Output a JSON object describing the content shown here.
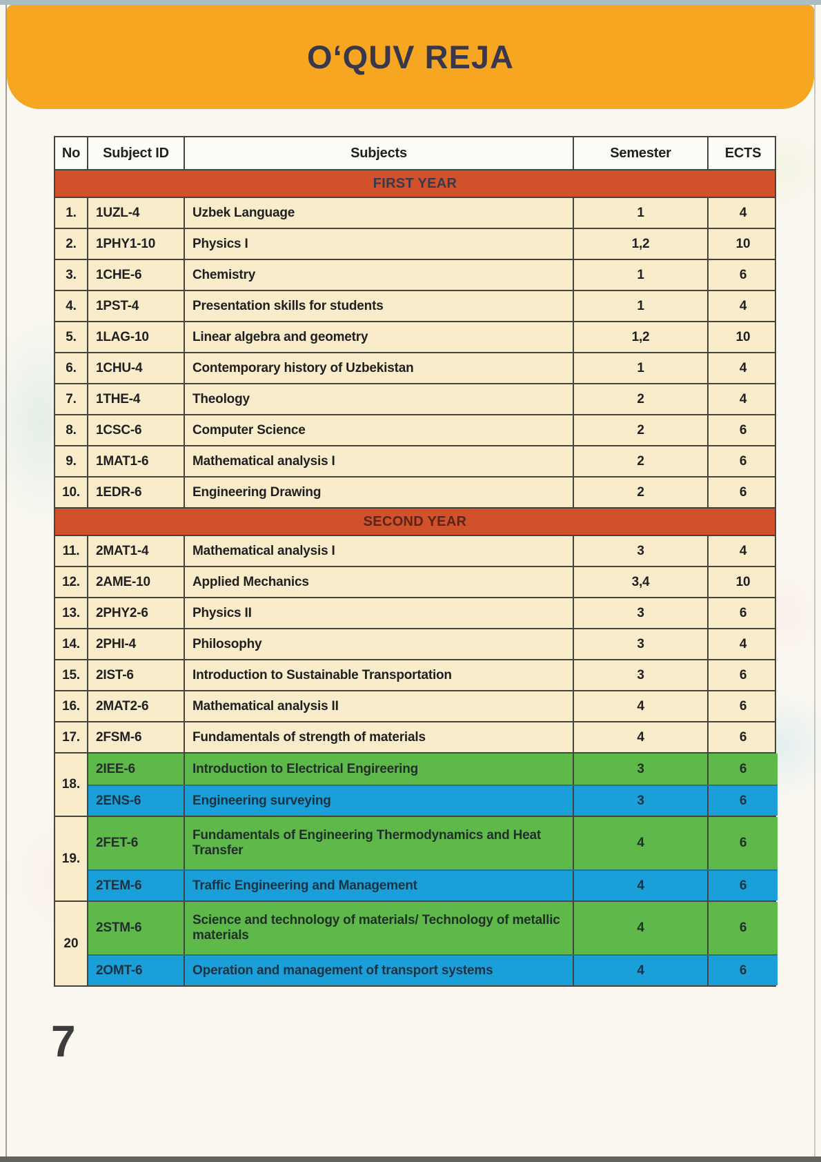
{
  "banner": {
    "title": "O‘QUV REJA"
  },
  "table": {
    "headers": {
      "no": "No",
      "subject_id": "Subject ID",
      "subjects": "Subjects",
      "semester": "Semester",
      "ects": "ECTS"
    },
    "sections": {
      "first_year": "FIRST YEAR",
      "second_year": "SECOND YEAR"
    },
    "first_year_rows": [
      {
        "no": "1.",
        "id": "1UZL-4",
        "subject": "Uzbek Language",
        "semester": "1",
        "ects": "4"
      },
      {
        "no": "2.",
        "id": "1PHY1-10",
        "subject": "Physics I",
        "semester": "1,2",
        "ects": "10"
      },
      {
        "no": "3.",
        "id": "1CHE-6",
        "subject": "Chemistry",
        "semester": "1",
        "ects": "6"
      },
      {
        "no": "4.",
        "id": "1PST-4",
        "subject": "Presentation skills for students",
        "semester": "1",
        "ects": "4"
      },
      {
        "no": "5.",
        "id": "1LAG-10",
        "subject": "Linear algebra and geometry",
        "semester": "1,2",
        "ects": "10"
      },
      {
        "no": "6.",
        "id": "1CHU-4",
        "subject": "Contemporary history of Uzbekistan",
        "semester": "1",
        "ects": "4"
      },
      {
        "no": "7.",
        "id": "1THE-4",
        "subject": "Theology",
        "semester": "2",
        "ects": "4"
      },
      {
        "no": "8.",
        "id": "1CSC-6",
        "subject": "Computer Science",
        "semester": "2",
        "ects": "6"
      },
      {
        "no": "9.",
        "id": "1MAT1-6",
        "subject": "Mathematical analysis I",
        "semester": "2",
        "ects": "6"
      },
      {
        "no": "10.",
        "id": "1EDR-6",
        "subject": "Engineering Drawing",
        "semester": "2",
        "ects": "6"
      }
    ],
    "second_year_rows": [
      {
        "no": "11.",
        "id": "2MAT1-4",
        "subject": "Mathematical analysis I",
        "semester": "3",
        "ects": "4"
      },
      {
        "no": "12.",
        "id": "2AME-10",
        "subject": "Applied Mechanics",
        "semester": "3,4",
        "ects": "10"
      },
      {
        "no": "13.",
        "id": "2PHY2-6",
        "subject": "Physics II",
        "semester": "3",
        "ects": "6"
      },
      {
        "no": "14.",
        "id": "2PHI-4",
        "subject": "Philosophy",
        "semester": "3",
        "ects": "4"
      },
      {
        "no": "15.",
        "id": "2IST-6",
        "subject": "Introduction to Sustainable Transportation",
        "semester": "3",
        "ects": "6"
      },
      {
        "no": "16.",
        "id": "2MAT2-6",
        "subject": "Mathematical analysis II",
        "semester": "4",
        "ects": "6"
      },
      {
        "no": "17.",
        "id": "2FSM-6",
        "subject": "Fundamentals of strength of materials",
        "semester": "4",
        "ects": "6"
      }
    ],
    "groups": [
      {
        "no": "18.",
        "items": [
          {
            "id": "2IEE-6",
            "subject": "Introduction to Electrical Engireering",
            "semester": "3",
            "ects": "6",
            "highlight": "green"
          },
          {
            "id": "2ENS-6",
            "subject": "Engineering surveying",
            "semester": "3",
            "ects": "6",
            "highlight": "blue"
          }
        ]
      },
      {
        "no": "19.",
        "items": [
          {
            "id": "2FET-6",
            "subject": "Fundamentals of Engineering Thermodynamics and Heat Transfer",
            "semester": "4",
            "ects": "6",
            "highlight": "green"
          },
          {
            "id": "2TEM-6",
            "subject": "Traffic Engineering and Management",
            "semester": "4",
            "ects": "6",
            "highlight": "blue"
          }
        ]
      },
      {
        "no": "20",
        "items": [
          {
            "id": "2STM-6",
            "subject": "Science and technology of materials/ Technology of metallic materials",
            "semester": "4",
            "ects": "6",
            "highlight": "green"
          },
          {
            "id": "2OMT-6",
            "subject": "Operation and management of transport systems",
            "semester": "4",
            "ects": "6",
            "highlight": "blue"
          }
        ]
      }
    ]
  },
  "page": {
    "number": "7"
  },
  "colors": {
    "banner_orange": "#F6A621",
    "section_band_rust": "#D1512A",
    "row_cream": "#F8ECCB",
    "highlight_green": "#5FB94A",
    "highlight_blue": "#1B9FD8",
    "top_strip_teal": "#A9BEC3",
    "border_dark": "#44443F"
  }
}
